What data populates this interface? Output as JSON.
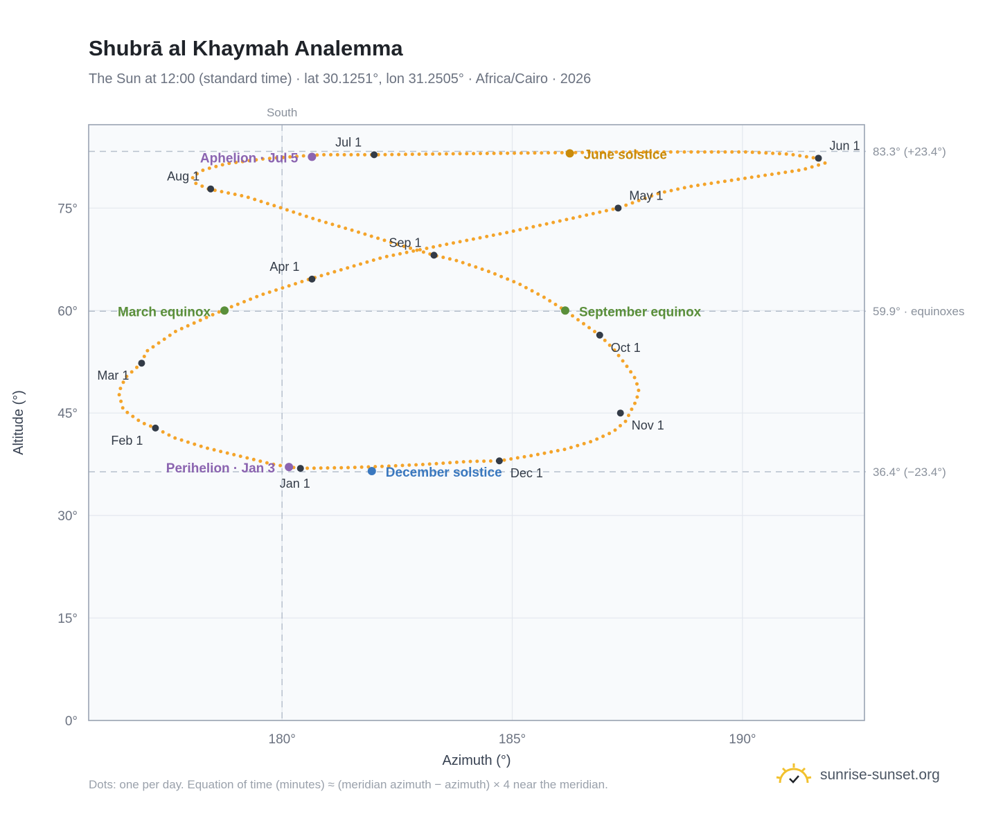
{
  "header": {
    "title": "Shubrā al Khaymah Analemma",
    "subtitle": "The Sun at 12:00 (standard time) · lat 30.1251°, lon 31.2505° · Africa/Cairo · 2026"
  },
  "footer": {
    "note": "Dots: one per day. Equation of time (minutes) ≈ (meridian azimuth − azimuth) × 4 near the meridian.",
    "brand": "sunrise-sunset.org"
  },
  "colors": {
    "curve": "#f4a42a",
    "month_marker": "#333b47",
    "june_solstice": "#c98b0a",
    "equinox": "#5a8f3a",
    "december_solstice": "#3a78bf",
    "apsis": "#8b64b0",
    "grid": "#e3e7ee",
    "plot_background": "#f8fafc",
    "brand_sun": "#f2c12e"
  },
  "chart_data": {
    "type": "scatter",
    "title": "Shubrā al Khaymah Analemma",
    "xlabel": "Azimuth (°)",
    "ylabel": "Altitude (°)",
    "xlim": [
      175.8,
      192.65
    ],
    "ylim": [
      0,
      87.2
    ],
    "x_ticks": [
      180,
      185,
      190
    ],
    "x_tick_labels": [
      "180°",
      "185°",
      "190°"
    ],
    "y_ticks": [
      0,
      15,
      30,
      45,
      60,
      75
    ],
    "y_tick_labels": [
      "0°",
      "15°",
      "30°",
      "45°",
      "60°",
      "75°"
    ],
    "grid": true,
    "series": [
      {
        "style": "daily dots, one per day",
        "points": [
          [
            180.4,
            36.9
          ],
          [
            181.4,
            37.0
          ],
          [
            182.25,
            37.2
          ],
          [
            183.15,
            37.5
          ],
          [
            184.03,
            37.9
          ],
          [
            184.72,
            38.0
          ],
          [
            185.45,
            38.8
          ],
          [
            186.15,
            39.7
          ],
          [
            186.75,
            40.9
          ],
          [
            187.2,
            42.3
          ],
          [
            187.48,
            43.9
          ],
          [
            187.55,
            45.0
          ],
          [
            187.7,
            46.9
          ],
          [
            187.75,
            48.5
          ],
          [
            187.65,
            50.3
          ],
          [
            187.45,
            52.2
          ],
          [
            187.22,
            54.2
          ],
          [
            186.9,
            56.4
          ],
          [
            186.5,
            58.3
          ],
          [
            186.15,
            60.0
          ],
          [
            185.7,
            61.9
          ],
          [
            185.15,
            63.9
          ],
          [
            184.5,
            65.7
          ],
          [
            183.8,
            67.3
          ],
          [
            183.3,
            68.1
          ],
          [
            182.45,
            69.8
          ],
          [
            181.6,
            71.6
          ],
          [
            180.7,
            73.4
          ],
          [
            179.9,
            75.2
          ],
          [
            179.2,
            76.7
          ],
          [
            178.4,
            77.8
          ],
          [
            178.1,
            78.7
          ],
          [
            178.05,
            79.6
          ],
          [
            178.3,
            80.6
          ],
          [
            178.8,
            81.5
          ],
          [
            179.6,
            82.2
          ],
          [
            180.6,
            82.7
          ],
          [
            180.9,
            82.8
          ],
          [
            182.0,
            82.8
          ],
          [
            183.2,
            82.9
          ],
          [
            184.5,
            83.0
          ],
          [
            186.0,
            83.1
          ],
          [
            187.5,
            83.2
          ],
          [
            188.9,
            83.2
          ],
          [
            190.1,
            83.2
          ],
          [
            191.0,
            82.9
          ],
          [
            191.6,
            82.3
          ],
          [
            191.8,
            81.6
          ],
          [
            191.3,
            80.6
          ],
          [
            190.3,
            79.6
          ],
          [
            188.9,
            78.2
          ],
          [
            188.2,
            77.2
          ],
          [
            187.3,
            75.0
          ],
          [
            186.1,
            73.2
          ],
          [
            184.8,
            71.3
          ],
          [
            183.5,
            69.6
          ],
          [
            182.2,
            67.8
          ],
          [
            180.6,
            64.6
          ],
          [
            179.55,
            62.3
          ],
          [
            178.7,
            60.0
          ],
          [
            177.7,
            57.0
          ],
          [
            177.05,
            54.0
          ],
          [
            176.95,
            52.3
          ],
          [
            176.6,
            50.2
          ],
          [
            176.45,
            48.0
          ],
          [
            176.55,
            45.5
          ],
          [
            176.95,
            43.6
          ],
          [
            177.25,
            42.8
          ],
          [
            177.65,
            41.4
          ],
          [
            178.35,
            39.9
          ],
          [
            179.2,
            38.5
          ],
          [
            179.8,
            37.5
          ],
          [
            180.15,
            37.1
          ],
          [
            180.4,
            36.9
          ]
        ]
      }
    ],
    "month_markers": [
      {
        "label": "Jan 1",
        "x": 180.4,
        "y": 36.9
      },
      {
        "label": "Feb 1",
        "x": 177.25,
        "y": 42.8
      },
      {
        "label": "Mar 1",
        "x": 176.95,
        "y": 52.3
      },
      {
        "label": "Apr 1",
        "x": 180.65,
        "y": 64.6
      },
      {
        "label": "May 1",
        "x": 187.3,
        "y": 75.0
      },
      {
        "label": "Jun 1",
        "x": 191.65,
        "y": 82.3
      },
      {
        "label": "Jul 1",
        "x": 182.0,
        "y": 82.8
      },
      {
        "label": "Aug 1",
        "x": 178.45,
        "y": 77.8
      },
      {
        "label": "Sep 1",
        "x": 183.3,
        "y": 68.1
      },
      {
        "label": "Oct 1",
        "x": 186.9,
        "y": 56.4
      },
      {
        "label": "Nov 1",
        "x": 187.35,
        "y": 45.0
      },
      {
        "label": "Dec 1",
        "x": 184.72,
        "y": 38.0
      }
    ],
    "events": [
      {
        "label": "June solstice",
        "x": 186.25,
        "y": 83.0,
        "color_key": "june_solstice"
      },
      {
        "label": "March equinox",
        "x": 178.75,
        "y": 60.0,
        "color_key": "equinox"
      },
      {
        "label": "September equinox",
        "x": 186.15,
        "y": 60.0,
        "color_key": "equinox"
      },
      {
        "label": "December solstice",
        "x": 181.95,
        "y": 36.5,
        "color_key": "december_solstice"
      },
      {
        "label": "Aphelion · Jul 5",
        "x": 180.65,
        "y": 82.5,
        "color_key": "apsis"
      },
      {
        "label": "Perihelion · Jan 3",
        "x": 180.15,
        "y": 37.1,
        "color_key": "apsis"
      }
    ],
    "reference_lines": [
      {
        "axis": "y",
        "value": 83.3,
        "label": "83.3° (+23.4°)"
      },
      {
        "axis": "y",
        "value": 59.9,
        "label": "59.9° · equinoxes"
      },
      {
        "axis": "y",
        "value": 36.4,
        "label": "36.4° (−23.4°)"
      },
      {
        "axis": "x",
        "value": 180,
        "label": "South"
      }
    ]
  }
}
